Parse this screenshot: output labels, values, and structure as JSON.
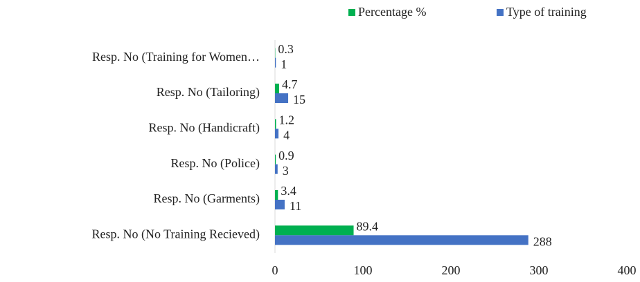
{
  "chart_data": {
    "type": "bar",
    "orientation": "horizontal",
    "categories": [
      "Resp. No (Training for Women…",
      "Resp. No (Tailoring)",
      "Resp. No (Handicraft)",
      "Resp. No (Police)",
      "Resp. No (Garments)",
      "Resp. No (No Training Recieved)"
    ],
    "series": [
      {
        "name": "Percentage %",
        "color": "#00b050",
        "values": [
          0.3,
          4.7,
          1.2,
          0.9,
          3.4,
          89.4
        ]
      },
      {
        "name": "Type of training",
        "color": "#4472c4",
        "values": [
          1,
          15,
          4,
          3,
          11,
          288
        ]
      }
    ],
    "xlim": [
      0,
      400
    ],
    "xticks": [
      0,
      100,
      200,
      300,
      400
    ],
    "legend": "top-right",
    "grid": false
  }
}
